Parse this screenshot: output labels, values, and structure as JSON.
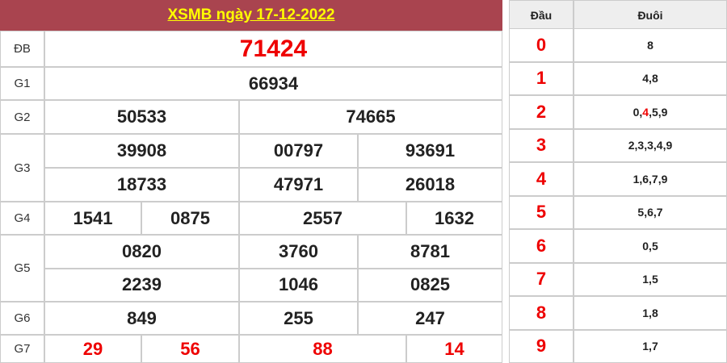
{
  "title": "XSMB ngày 17-12-2022",
  "prizes": {
    "db": {
      "label": "ĐB",
      "nums": [
        "71424"
      ]
    },
    "g1": {
      "label": "G1",
      "nums": [
        "66934"
      ]
    },
    "g2": {
      "label": "G2",
      "nums": [
        "50533",
        "74665"
      ]
    },
    "g3": {
      "label": "G3",
      "nums": [
        "39908",
        "00797",
        "93691",
        "18733",
        "47971",
        "26018"
      ]
    },
    "g4": {
      "label": "G4",
      "nums": [
        "1541",
        "0875",
        "2557",
        "1632"
      ]
    },
    "g5": {
      "label": "G5",
      "nums": [
        "0820",
        "3760",
        "8781",
        "2239",
        "1046",
        "0825"
      ]
    },
    "g6": {
      "label": "G6",
      "nums": [
        "849",
        "255",
        "247"
      ]
    },
    "g7": {
      "label": "G7",
      "nums": [
        "29",
        "56",
        "88",
        "14"
      ]
    }
  },
  "loto": {
    "head_label": "Đầu",
    "tail_label": "Đuôi",
    "rows": [
      {
        "dau": "0",
        "duoi": "8"
      },
      {
        "dau": "1",
        "duoi": "4,8"
      },
      {
        "dau": "2",
        "duoi_parts": [
          "0,",
          "4",
          ",5,9"
        ]
      },
      {
        "dau": "3",
        "duoi": "2,3,3,4,9"
      },
      {
        "dau": "4",
        "duoi": "1,6,7,9"
      },
      {
        "dau": "5",
        "duoi": "5,6,7"
      },
      {
        "dau": "6",
        "duoi": "0,5"
      },
      {
        "dau": "7",
        "duoi": "1,5"
      },
      {
        "dau": "8",
        "duoi": "1,8"
      },
      {
        "dau": "9",
        "duoi": "1,7"
      }
    ]
  },
  "colors": {
    "header_bg": "#a9444f",
    "title": "#ffff00",
    "highlight": "#ee0000"
  }
}
